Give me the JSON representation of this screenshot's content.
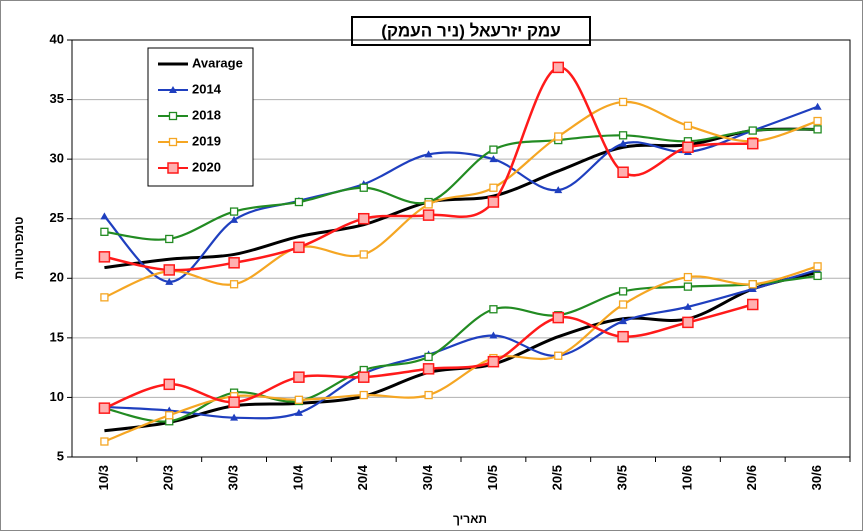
{
  "chart_data": {
    "type": "line",
    "title": "עמק יזרעאל (ניר העמק)",
    "y_label": "טמפרטורות",
    "x_label": "תאריך",
    "categories": [
      "10/3",
      "20/3",
      "30/3",
      "10/4",
      "20/4",
      "30/4",
      "10/5",
      "20/5",
      "30/5",
      "10/6",
      "20/6",
      "30/6"
    ],
    "ylim": [
      5,
      40
    ],
    "yticks": [
      5,
      10,
      15,
      20,
      25,
      30,
      35,
      40
    ],
    "grid": true,
    "legend": "top-left",
    "series": [
      {
        "name": "Avarage",
        "color": "#000000",
        "marker": "none",
        "values": [
          20.9,
          21.6,
          22,
          23.5,
          24.5,
          26.4,
          26.9,
          29,
          31,
          31.2,
          32.4,
          32.5
        ],
        "min_values": [
          7.2,
          7.9,
          9.3,
          9.5,
          10.1,
          12.1,
          12.8,
          15.1,
          16.6,
          16.6,
          19.1,
          20.5
        ]
      },
      {
        "name": "2014",
        "color": "#1f3fbf",
        "marker": "triangle",
        "values": [
          25.2,
          19.7,
          24.9,
          26.5,
          27.9,
          30.4,
          30.0,
          27.4,
          31.3,
          30.6,
          32.4,
          34.4
        ],
        "min_values": [
          9.2,
          8.9,
          8.3,
          8.7,
          12.0,
          13.6,
          15.2,
          13.5,
          16.4,
          17.6,
          19.1,
          20.7
        ]
      },
      {
        "name": "2018",
        "color": "#228b22",
        "marker": "square",
        "values": [
          23.9,
          23.3,
          25.6,
          26.4,
          27.6,
          26.4,
          30.8,
          31.6,
          32.0,
          31.5,
          32.4,
          32.5
        ],
        "min_values": [
          9.1,
          8.0,
          10.4,
          9.7,
          12.3,
          13.4,
          17.4,
          16.9,
          18.9,
          19.3,
          19.5,
          20.2
        ]
      },
      {
        "name": "2019",
        "color": "#f5a623",
        "marker": "square",
        "values": [
          18.4,
          20.6,
          19.5,
          22.6,
          22.0,
          26.2,
          27.6,
          31.9,
          34.8,
          32.8,
          31.5,
          33.2
        ],
        "min_values": [
          6.3,
          8.5,
          10.1,
          9.8,
          10.2,
          10.2,
          13.3,
          13.5,
          17.8,
          20.1,
          19.5,
          21.0
        ]
      },
      {
        "name": "2020",
        "color": "#ff1a1a",
        "marker": "square-filled",
        "values": [
          21.8,
          20.7,
          21.3,
          22.6,
          25.0,
          25.3,
          26.4,
          37.7,
          28.9,
          31.0,
          31.3,
          null
        ],
        "min_values": [
          9.1,
          11.1,
          9.6,
          11.7,
          11.7,
          12.4,
          13.0,
          16.7,
          15.1,
          16.3,
          17.8,
          null
        ]
      }
    ]
  }
}
